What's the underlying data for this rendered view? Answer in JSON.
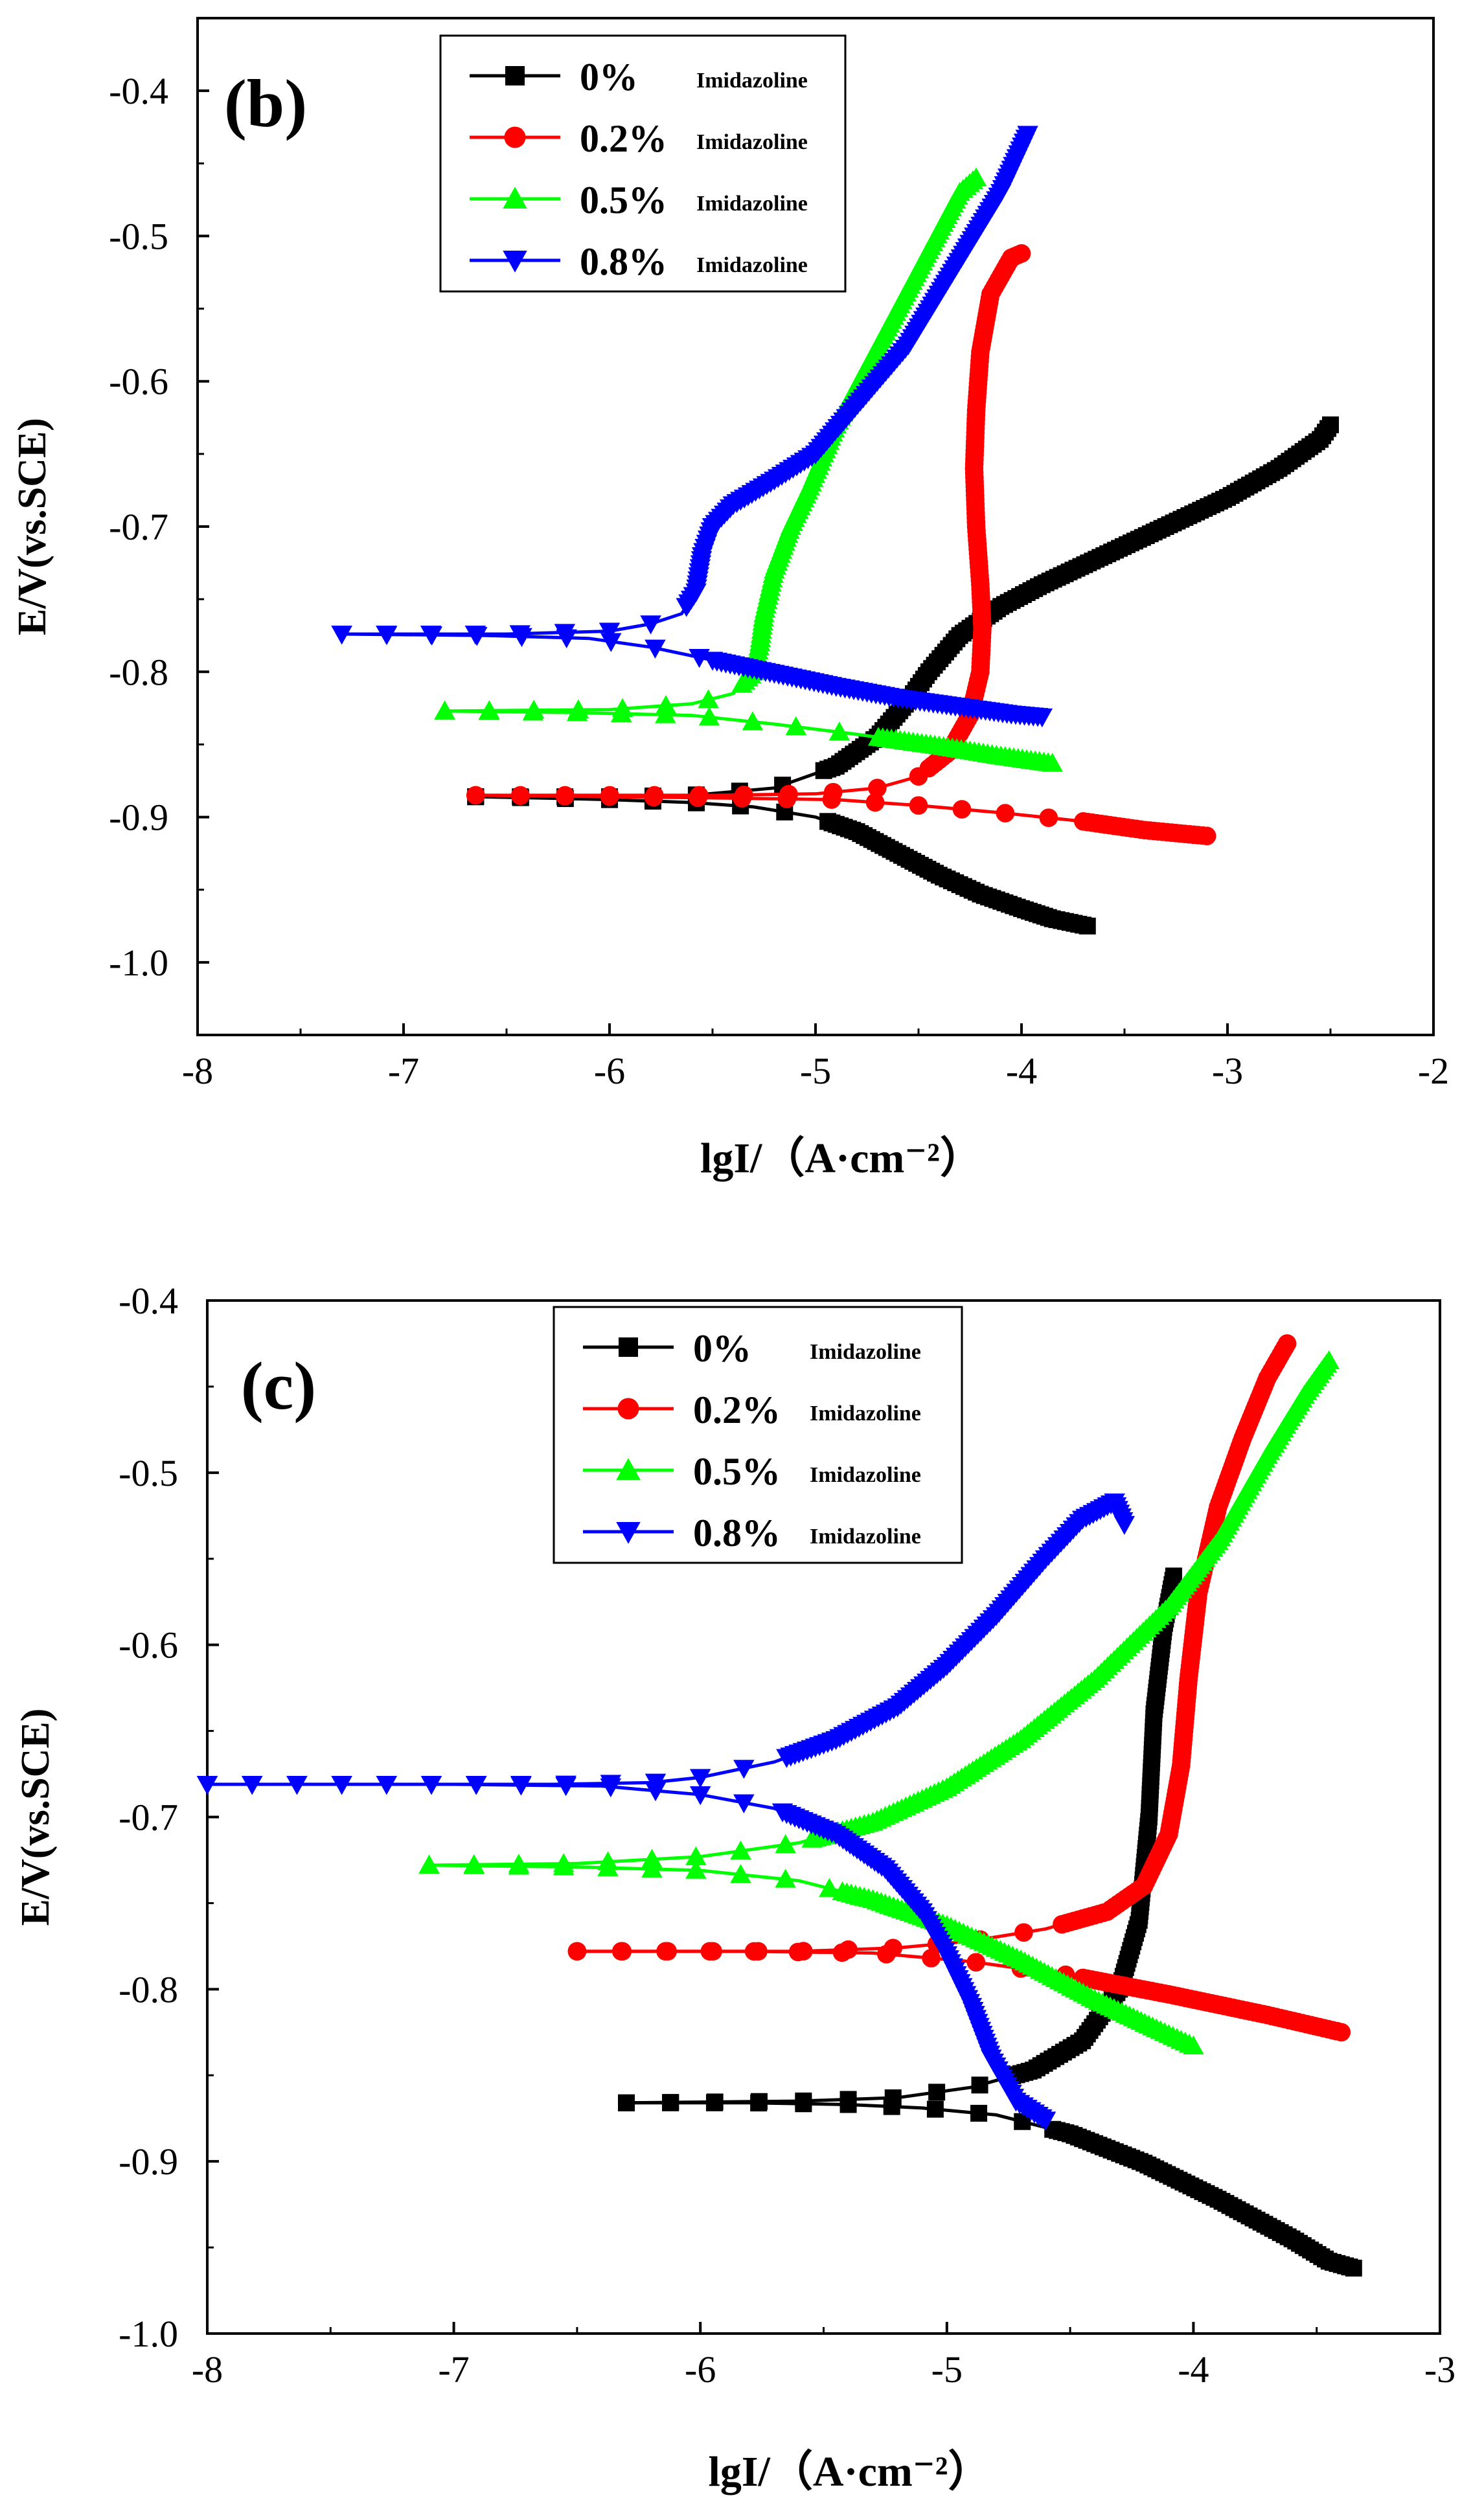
{
  "chart_data": [
    {
      "type": "line",
      "panel_label": "(b)",
      "xlabel": "lgI/（A·cm⁻²）",
      "ylabel": "E/V(vs.SCE)",
      "xlim": [
        -8,
        -2
      ],
      "ylim": [
        -1.05,
        -0.35
      ],
      "xticks": [
        -8,
        -7,
        -6,
        -5,
        -4,
        -3,
        -2
      ],
      "yticks": [
        -1.0,
        -0.9,
        -0.8,
        -0.7,
        -0.6,
        -0.5,
        -0.4
      ],
      "xtick_labels": [
        "-8",
        "-7",
        "-6",
        "-5",
        "-4",
        "-3",
        "-2"
      ],
      "ytick_labels": [
        "-1.0",
        "-0.9",
        "-0.8",
        "-0.7",
        "-0.6",
        "-0.5",
        "-0.4"
      ],
      "legend_position": "top-center",
      "series": [
        {
          "name": "0%",
          "suffix": "Imidazoline",
          "color": "#000000",
          "marker": "square",
          "cathodic": [
            [
              -6.65,
              -0.886
            ],
            [
              -6.3,
              -0.887
            ],
            [
              -6.0,
              -0.888
            ],
            [
              -5.6,
              -0.89
            ],
            [
              -5.3,
              -0.893
            ],
            [
              -5.0,
              -0.9
            ],
            [
              -4.8,
              -0.91
            ],
            [
              -4.6,
              -0.925
            ],
            [
              -4.4,
              -0.94
            ],
            [
              -4.2,
              -0.953
            ],
            [
              -4.0,
              -0.963
            ],
            [
              -3.85,
              -0.97
            ],
            [
              -3.68,
              -0.975
            ]
          ],
          "anodic": [
            [
              -6.65,
              -0.886
            ],
            [
              -6.0,
              -0.886
            ],
            [
              -5.6,
              -0.885
            ],
            [
              -5.2,
              -0.88
            ],
            [
              -4.9,
              -0.865
            ],
            [
              -4.7,
              -0.845
            ],
            [
              -4.55,
              -0.82
            ],
            [
              -4.45,
              -0.8
            ],
            [
              -4.3,
              -0.775
            ],
            [
              -4.1,
              -0.755
            ],
            [
              -3.9,
              -0.74
            ],
            [
              -3.6,
              -0.72
            ],
            [
              -3.3,
              -0.7
            ],
            [
              -3.0,
              -0.68
            ],
            [
              -2.75,
              -0.66
            ],
            [
              -2.55,
              -0.64
            ],
            [
              -2.5,
              -0.63
            ]
          ]
        },
        {
          "name": "0.2%",
          "suffix": "Imidazoline",
          "color": "#ff0000",
          "marker": "circle",
          "cathodic": [
            [
              -6.65,
              -0.885
            ],
            [
              -6.0,
              -0.886
            ],
            [
              -5.4,
              -0.887
            ],
            [
              -4.9,
              -0.888
            ],
            [
              -4.5,
              -0.892
            ],
            [
              -4.1,
              -0.897
            ],
            [
              -3.7,
              -0.903
            ],
            [
              -3.4,
              -0.909
            ],
            [
              -3.1,
              -0.913
            ]
          ],
          "anodic": [
            [
              -6.65,
              -0.885
            ],
            [
              -5.5,
              -0.885
            ],
            [
              -5.0,
              -0.884
            ],
            [
              -4.7,
              -0.88
            ],
            [
              -4.5,
              -0.872
            ],
            [
              -4.35,
              -0.855
            ],
            [
              -4.25,
              -0.83
            ],
            [
              -4.2,
              -0.8
            ],
            [
              -4.19,
              -0.77
            ],
            [
              -4.2,
              -0.74
            ],
            [
              -4.22,
              -0.7
            ],
            [
              -4.23,
              -0.66
            ],
            [
              -4.22,
              -0.62
            ],
            [
              -4.2,
              -0.58
            ],
            [
              -4.15,
              -0.54
            ],
            [
              -4.05,
              -0.515
            ],
            [
              -4.0,
              -0.512
            ]
          ]
        },
        {
          "name": "0.5%",
          "suffix": "Imidazoline",
          "color": "#00ff00",
          "marker": "triangle-up",
          "cathodic": [
            [
              -6.8,
              -0.827
            ],
            [
              -6.2,
              -0.828
            ],
            [
              -5.6,
              -0.83
            ],
            [
              -5.2,
              -0.836
            ],
            [
              -4.8,
              -0.843
            ],
            [
              -4.4,
              -0.851
            ],
            [
              -4.1,
              -0.858
            ],
            [
              -3.85,
              -0.863
            ]
          ],
          "anodic": [
            [
              -6.8,
              -0.827
            ],
            [
              -6.0,
              -0.826
            ],
            [
              -5.6,
              -0.822
            ],
            [
              -5.4,
              -0.815
            ],
            [
              -5.3,
              -0.8
            ],
            [
              -5.27,
              -0.78
            ],
            [
              -5.25,
              -0.76
            ],
            [
              -5.2,
              -0.73
            ],
            [
              -5.12,
              -0.7
            ],
            [
              -5.02,
              -0.67
            ],
            [
              -4.9,
              -0.63
            ],
            [
              -4.75,
              -0.59
            ],
            [
              -4.6,
              -0.55
            ],
            [
              -4.45,
              -0.51
            ],
            [
              -4.3,
              -0.47
            ],
            [
              -4.22,
              -0.46
            ]
          ]
        },
        {
          "name": "0.8%",
          "suffix": "Imidazoline",
          "color": "#0000ff",
          "marker": "triangle-down",
          "cathodic": [
            [
              -7.3,
              -0.774
            ],
            [
              -6.6,
              -0.775
            ],
            [
              -6.1,
              -0.777
            ],
            [
              -5.8,
              -0.783
            ],
            [
              -5.5,
              -0.792
            ],
            [
              -5.2,
              -0.801
            ],
            [
              -4.9,
              -0.81
            ],
            [
              -4.6,
              -0.818
            ],
            [
              -4.3,
              -0.824
            ],
            [
              -4.05,
              -0.829
            ],
            [
              -3.9,
              -0.831
            ]
          ],
          "anodic": [
            [
              -7.3,
              -0.774
            ],
            [
              -6.5,
              -0.774
            ],
            [
              -6.0,
              -0.772
            ],
            [
              -5.8,
              -0.767
            ],
            [
              -5.65,
              -0.76
            ],
            [
              -5.58,
              -0.745
            ],
            [
              -5.55,
              -0.72
            ],
            [
              -5.5,
              -0.7
            ],
            [
              -5.4,
              -0.685
            ],
            [
              -5.2,
              -0.668
            ],
            [
              -5.0,
              -0.65
            ],
            [
              -4.85,
              -0.625
            ],
            [
              -4.7,
              -0.6
            ],
            [
              -4.55,
              -0.575
            ],
            [
              -4.4,
              -0.54
            ],
            [
              -4.25,
              -0.505
            ],
            [
              -4.1,
              -0.47
            ],
            [
              -3.97,
              -0.43
            ]
          ]
        }
      ]
    },
    {
      "type": "line",
      "panel_label": "(c)",
      "xlabel": "lgI/（A·cm⁻²）",
      "ylabel": "E/V(vs.SCE)",
      "xlim": [
        -8,
        -3
      ],
      "ylim": [
        -1.0,
        -0.4
      ],
      "xticks": [
        -8,
        -7,
        -6,
        -5,
        -4,
        -3
      ],
      "yticks": [
        -1.0,
        -0.9,
        -0.8,
        -0.7,
        -0.6,
        -0.5,
        -0.4
      ],
      "xtick_labels": [
        "-8",
        "-7",
        "-6",
        "-5",
        "-4",
        "-3"
      ],
      "ytick_labels": [
        "-1.0",
        "-0.9",
        "-0.8",
        "-0.7",
        "-0.6",
        "-0.5",
        "-0.4"
      ],
      "legend_position": "top-center",
      "series": [
        {
          "name": "0%",
          "suffix": "Imidazoline",
          "color": "#000000",
          "marker": "square",
          "cathodic": [
            [
              -6.3,
              -0.866
            ],
            [
              -5.8,
              -0.866
            ],
            [
              -5.4,
              -0.867
            ],
            [
              -5.1,
              -0.869
            ],
            [
              -4.8,
              -0.873
            ],
            [
              -4.5,
              -0.884
            ],
            [
              -4.2,
              -0.901
            ],
            [
              -3.9,
              -0.922
            ],
            [
              -3.6,
              -0.945
            ],
            [
              -3.45,
              -0.958
            ],
            [
              -3.35,
              -0.962
            ]
          ],
          "anodic": [
            [
              -6.3,
              -0.866
            ],
            [
              -5.6,
              -0.865
            ],
            [
              -5.2,
              -0.863
            ],
            [
              -4.9,
              -0.857
            ],
            [
              -4.65,
              -0.847
            ],
            [
              -4.45,
              -0.83
            ],
            [
              -4.3,
              -0.8
            ],
            [
              -4.22,
              -0.76
            ],
            [
              -4.18,
              -0.7
            ],
            [
              -4.16,
              -0.64
            ],
            [
              -4.12,
              -0.59
            ],
            [
              -4.08,
              -0.56
            ]
          ]
        },
        {
          "name": "0.2%",
          "suffix": "Imidazoline",
          "color": "#ff0000",
          "marker": "circle",
          "cathodic": [
            [
              -6.5,
              -0.778
            ],
            [
              -5.8,
              -0.778
            ],
            [
              -5.3,
              -0.779
            ],
            [
              -4.9,
              -0.784
            ],
            [
              -4.5,
              -0.792
            ],
            [
              -4.1,
              -0.803
            ],
            [
              -3.7,
              -0.815
            ],
            [
              -3.4,
              -0.825
            ]
          ],
          "anodic": [
            [
              -6.5,
              -0.778
            ],
            [
              -5.6,
              -0.778
            ],
            [
              -5.2,
              -0.776
            ],
            [
              -4.9,
              -0.772
            ],
            [
              -4.6,
              -0.765
            ],
            [
              -4.35,
              -0.755
            ],
            [
              -4.2,
              -0.74
            ],
            [
              -4.1,
              -0.71
            ],
            [
              -4.05,
              -0.67
            ],
            [
              -4.02,
              -0.62
            ],
            [
              -3.98,
              -0.57
            ],
            [
              -3.9,
              -0.52
            ],
            [
              -3.8,
              -0.48
            ],
            [
              -3.7,
              -0.445
            ],
            [
              -3.62,
              -0.425
            ]
          ]
        },
        {
          "name": "0.5%",
          "suffix": "Imidazoline",
          "color": "#00ff00",
          "marker": "triangle-up",
          "cathodic": [
            [
              -7.1,
              -0.728
            ],
            [
              -6.5,
              -0.729
            ],
            [
              -6.0,
              -0.731
            ],
            [
              -5.6,
              -0.737
            ],
            [
              -5.3,
              -0.748
            ],
            [
              -5.0,
              -0.763
            ],
            [
              -4.7,
              -0.783
            ],
            [
              -4.4,
              -0.806
            ],
            [
              -4.15,
              -0.823
            ],
            [
              -4.0,
              -0.833
            ]
          ],
          "anodic": [
            [
              -7.1,
              -0.728
            ],
            [
              -6.5,
              -0.727
            ],
            [
              -6.0,
              -0.723
            ],
            [
              -5.6,
              -0.715
            ],
            [
              -5.3,
              -0.703
            ],
            [
              -5.0,
              -0.683
            ],
            [
              -4.7,
              -0.655
            ],
            [
              -4.4,
              -0.62
            ],
            [
              -4.1,
              -0.578
            ],
            [
              -3.9,
              -0.54
            ],
            [
              -3.7,
              -0.49
            ],
            [
              -3.55,
              -0.455
            ],
            [
              -3.45,
              -0.435
            ]
          ]
        },
        {
          "name": "0.8%",
          "suffix": "Imidazoline",
          "color": "#0000ff",
          "marker": "triangle-down",
          "cathodic": [
            [
              -8.0,
              -0.681
            ],
            [
              -7.0,
              -0.681
            ],
            [
              -6.4,
              -0.682
            ],
            [
              -6.0,
              -0.687
            ],
            [
              -5.7,
              -0.695
            ],
            [
              -5.45,
              -0.71
            ],
            [
              -5.25,
              -0.73
            ],
            [
              -5.1,
              -0.755
            ],
            [
              -5.0,
              -0.78
            ],
            [
              -4.9,
              -0.81
            ],
            [
              -4.82,
              -0.84
            ],
            [
              -4.72,
              -0.865
            ],
            [
              -4.6,
              -0.876
            ]
          ],
          "anodic": [
            [
              -8.0,
              -0.681
            ],
            [
              -6.6,
              -0.681
            ],
            [
              -6.2,
              -0.68
            ],
            [
              -6.0,
              -0.677
            ],
            [
              -5.7,
              -0.668
            ],
            [
              -5.45,
              -0.655
            ],
            [
              -5.2,
              -0.636
            ],
            [
              -5.0,
              -0.612
            ],
            [
              -4.8,
              -0.583
            ],
            [
              -4.6,
              -0.55
            ],
            [
              -4.45,
              -0.527
            ],
            [
              -4.32,
              -0.517
            ],
            [
              -4.28,
              -0.53
            ]
          ]
        }
      ]
    }
  ]
}
